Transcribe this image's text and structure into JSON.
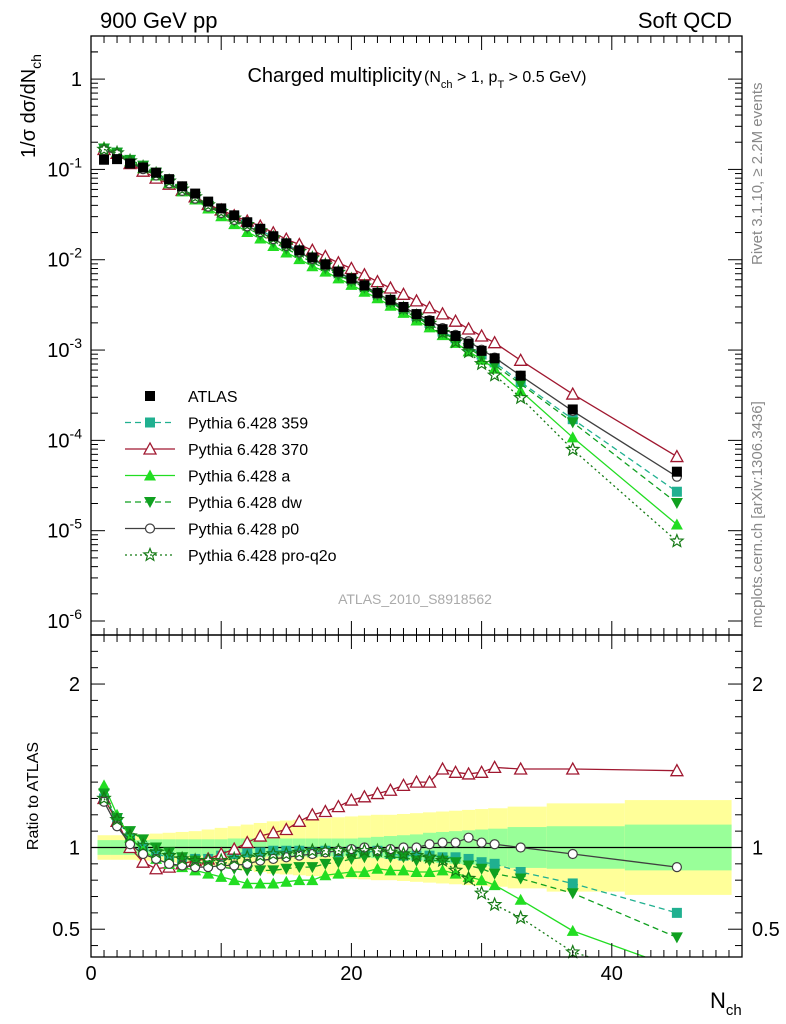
{
  "header": {
    "left": "900 GeV pp",
    "right": "Soft QCD",
    "side_top": "Rivet 3.1.10, ≥ 2.2M events",
    "side_bottom": "mcplots.cern.ch [arXiv:1306.3436]",
    "analysis_id": "ATLAS_2010_S8918562"
  },
  "colors": {
    "ATLAS": "#000000",
    "p359": "#20b090",
    "p370": "#a01830",
    "pa": "#22dd22",
    "pdw": "#10a020",
    "pp0": "#404040",
    "pq2o": "#157a15",
    "band_outer": "#ffff99",
    "band_inner": "#99ff99"
  },
  "chart_data": {
    "type": "scatter",
    "title": "Charged multiplicity",
    "title_suffix": "(N_ch > 1, p_T > 0.5 GeV)",
    "ylabel_main": "1/σ dσ/dN_ch",
    "ylabel_ratio": "Ratio to ATLAS",
    "xlabel": "N_ch",
    "xlim": [
      0,
      50
    ],
    "ylim_main": [
      7e-07,
      3
    ],
    "ylog": true,
    "ylim_ratio": [
      0.33,
      2.3
    ],
    "x_ticks": [
      "0",
      "20",
      "40"
    ],
    "y_ticks_main": [
      "10^{-6}",
      "10^{-5}",
      "10^{-4}",
      "10^{-3}",
      "10^{-2}",
      "10^{-1}",
      "1"
    ],
    "y_ticks_ratio": [
      "0.5",
      "1",
      "2"
    ],
    "legend_placement": "lower-left",
    "x": [
      1,
      2,
      3,
      4,
      5,
      6,
      7,
      8,
      9,
      10,
      11,
      12,
      13,
      14,
      15,
      16,
      17,
      18,
      19,
      20,
      21,
      22,
      23,
      24,
      25,
      26,
      27,
      28,
      29,
      30,
      31,
      33,
      37,
      45
    ],
    "data": {
      "name": "ATLAS",
      "values": [
        0.128,
        0.13,
        0.116,
        0.105,
        0.092,
        0.078,
        0.065,
        0.054,
        0.044,
        0.037,
        0.031,
        0.026,
        0.022,
        0.0182,
        0.0152,
        0.0127,
        0.0106,
        0.0089,
        0.0074,
        0.0062,
        0.0052,
        0.0043,
        0.0036,
        0.003,
        0.0025,
        0.0021,
        0.0017,
        0.00143,
        0.00118,
        0.00098,
        0.00081,
        0.00052,
        0.00022,
        4.5e-05
      ]
    },
    "band_inner": [
      0.955,
      0.955,
      0.955,
      0.955,
      0.95,
      0.95,
      0.95,
      0.95,
      0.95,
      0.95,
      0.945,
      0.945,
      0.945,
      0.945,
      0.945,
      0.945,
      0.945,
      0.945,
      0.945,
      0.945,
      0.94,
      0.935,
      0.93,
      0.925,
      0.92,
      0.91,
      0.905,
      0.9,
      0.895,
      0.89,
      0.885,
      0.875,
      0.87,
      0.86
    ],
    "band_outer": [
      0.925,
      0.925,
      0.925,
      0.92,
      0.915,
      0.91,
      0.905,
      0.9,
      0.89,
      0.88,
      0.87,
      0.86,
      0.85,
      0.84,
      0.835,
      0.83,
      0.825,
      0.82,
      0.815,
      0.81,
      0.805,
      0.8,
      0.8,
      0.795,
      0.79,
      0.785,
      0.78,
      0.775,
      0.77,
      0.765,
      0.76,
      0.75,
      0.73,
      0.71
    ],
    "series": [
      {
        "name": "Pythia 6.428 359",
        "key": "p359",
        "marker": "square",
        "dash": "dashed",
        "values": [
          1.3,
          1.18,
          1.05,
          1.0,
          0.96,
          0.94,
          0.93,
          0.93,
          0.93,
          0.95,
          0.96,
          0.97,
          0.97,
          0.98,
          0.98,
          0.98,
          0.97,
          0.98,
          0.97,
          0.98,
          0.97,
          0.98,
          0.96,
          0.95,
          0.95,
          0.95,
          0.94,
          0.94,
          0.93,
          0.91,
          0.9,
          0.85,
          0.78,
          0.6
        ]
      },
      {
        "name": "Pythia 6.428 370",
        "key": "p370",
        "marker": "triangle-open",
        "dash": "solid",
        "values": [
          1.3,
          1.16,
          1.0,
          0.91,
          0.87,
          0.88,
          0.9,
          0.92,
          0.93,
          0.96,
          0.99,
          1.03,
          1.07,
          1.09,
          1.11,
          1.16,
          1.2,
          1.22,
          1.25,
          1.29,
          1.31,
          1.33,
          1.35,
          1.38,
          1.4,
          1.4,
          1.48,
          1.46,
          1.45,
          1.46,
          1.49,
          1.48,
          1.48,
          1.47
        ]
      },
      {
        "name": "Pythia 6.428 a",
        "key": "pa",
        "marker": "triangle",
        "dash": "solid",
        "values": [
          1.38,
          1.2,
          1.06,
          0.98,
          0.93,
          0.9,
          0.88,
          0.86,
          0.84,
          0.82,
          0.8,
          0.78,
          0.78,
          0.78,
          0.79,
          0.8,
          0.8,
          0.83,
          0.84,
          0.85,
          0.85,
          0.87,
          0.86,
          0.86,
          0.85,
          0.85,
          0.86,
          0.84,
          0.82,
          0.8,
          0.77,
          0.68,
          0.49,
          0.26
        ]
      },
      {
        "name": "Pythia 6.428 dw",
        "key": "pdw",
        "marker": "triangle-down",
        "dash": "dashed",
        "values": [
          1.33,
          1.18,
          1.1,
          1.05,
          1.0,
          0.97,
          0.94,
          0.92,
          0.89,
          0.88,
          0.87,
          0.86,
          0.86,
          0.86,
          0.87,
          0.88,
          0.88,
          0.9,
          0.91,
          0.93,
          0.94,
          0.95,
          0.94,
          0.94,
          0.92,
          0.92,
          0.92,
          0.91,
          0.89,
          0.87,
          0.84,
          0.81,
          0.72,
          0.45
        ]
      },
      {
        "name": "Pythia 6.428 p0",
        "key": "pp0",
        "marker": "circle-open",
        "dash": "solid",
        "values": [
          1.28,
          1.13,
          1.02,
          0.96,
          0.93,
          0.9,
          0.89,
          0.88,
          0.88,
          0.89,
          0.89,
          0.9,
          0.92,
          0.93,
          0.94,
          0.95,
          0.96,
          0.97,
          0.98,
          0.99,
          1.0,
          0.98,
          0.99,
          1.0,
          1.0,
          1.02,
          1.03,
          1.03,
          1.06,
          1.03,
          1.02,
          1.0,
          0.96,
          0.88
        ]
      },
      {
        "name": "Pythia 6.428 pro-q2o",
        "key": "pq2o",
        "marker": "star",
        "dash": "dotted",
        "values": [
          1.3,
          1.17,
          1.07,
          1.01,
          0.97,
          0.95,
          0.93,
          0.92,
          0.92,
          0.92,
          0.93,
          0.94,
          0.95,
          0.96,
          0.96,
          0.97,
          0.98,
          0.98,
          0.98,
          0.97,
          0.98,
          0.98,
          0.97,
          0.96,
          0.95,
          0.94,
          0.92,
          0.86,
          0.81,
          0.72,
          0.65,
          0.57,
          0.36,
          0.17
        ]
      }
    ]
  }
}
